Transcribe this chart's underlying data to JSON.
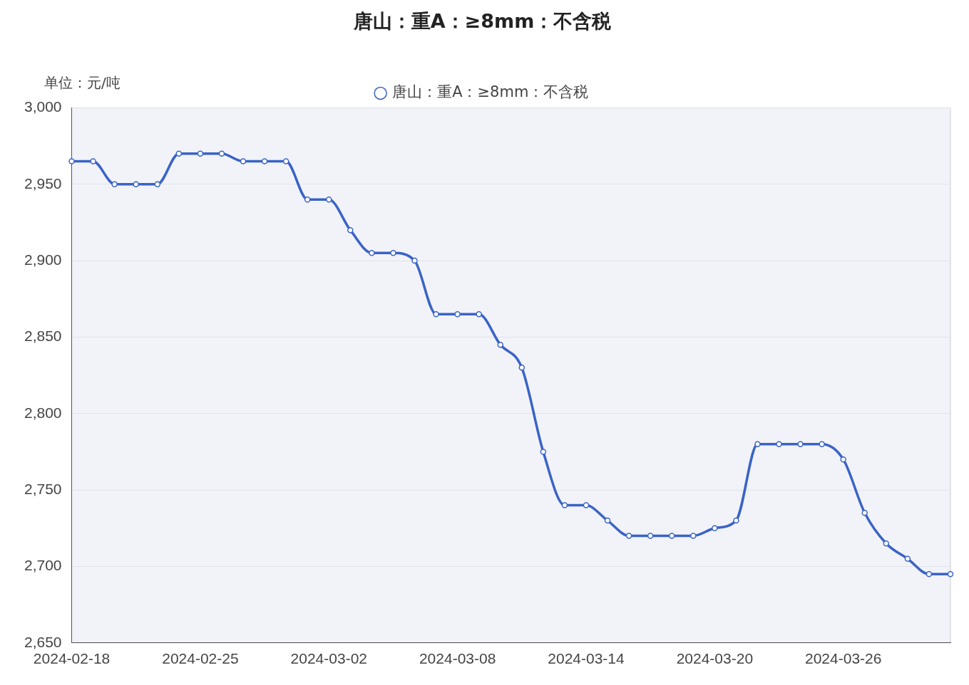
{
  "chart_data": {
    "type": "line",
    "title": "唐山：重A：≥8mm：不含税",
    "ylabel": "单位：元/吨",
    "categories": [
      "2024-02-18",
      null,
      null,
      null,
      null,
      null,
      "2024-02-25",
      null,
      null,
      null,
      null,
      null,
      "2024-03-02",
      null,
      null,
      null,
      null,
      null,
      "2024-03-08",
      null,
      null,
      null,
      null,
      null,
      "2024-03-14",
      null,
      null,
      null,
      null,
      null,
      "2024-03-20",
      null,
      null,
      null,
      null,
      null,
      "2024-03-26",
      null,
      null,
      null,
      null,
      null
    ],
    "series": [
      {
        "name": "唐山：重A：≥8mm：不含税",
        "color": "#3a63c7",
        "values": [
          2965,
          2965,
          2950,
          2950,
          2950,
          2970,
          2970,
          2970,
          2965,
          2965,
          2965,
          2940,
          2940,
          2920,
          2905,
          2905,
          2900,
          2865,
          2865,
          2865,
          2845,
          2830,
          2775,
          2740,
          2740,
          2730,
          2720,
          2720,
          2720,
          2720,
          2725,
          2730,
          2780,
          2780,
          2780,
          2780,
          2770,
          2735,
          2715,
          2705,
          2695,
          2695
        ]
      }
    ],
    "ylim": [
      2650,
      3000
    ],
    "yticks": [
      {
        "value": 2650,
        "label": "2,650"
      },
      {
        "value": 2700,
        "label": "2,700"
      },
      {
        "value": 2750,
        "label": "2,750"
      },
      {
        "value": 2800,
        "label": "2,800"
      },
      {
        "value": 2850,
        "label": "2,850"
      },
      {
        "value": 2900,
        "label": "2,900"
      },
      {
        "value": 2950,
        "label": "2,950"
      },
      {
        "value": 3000,
        "label": "3,000"
      }
    ],
    "grid": "y",
    "legend": "top",
    "marker": "circle",
    "line_style": "solid"
  }
}
